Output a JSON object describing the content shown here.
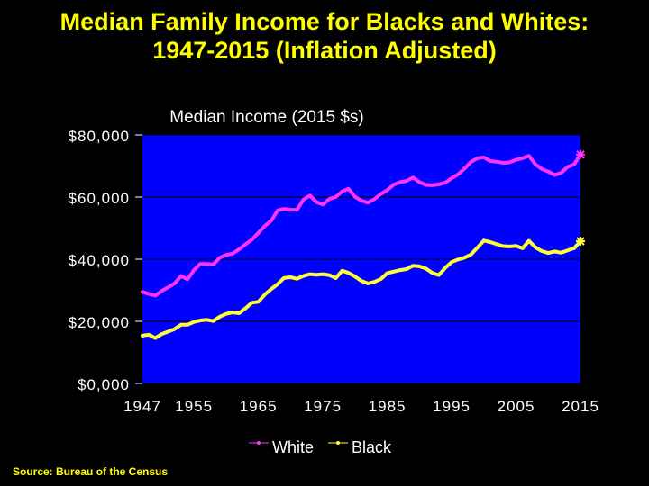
{
  "slide": {
    "title_line1": "Median Family Income for Blacks and Whites:",
    "title_line2": "1947-2015 (Inflation Adjusted)",
    "source": "Source: Bureau of the Census"
  },
  "colors": {
    "background": "#000000",
    "plot_area": "#0000FF",
    "title": "#FFFF00",
    "text": "#FFFFFF",
    "white_series": "#FF33FF",
    "black_series": "#FFFF33"
  },
  "chart_data": {
    "type": "line",
    "title": "Median Income (2015 $s)",
    "xlabel": "",
    "ylabel": "",
    "xlim": [
      1947,
      2015
    ],
    "ylim": [
      0,
      80000
    ],
    "x_ticks": [
      1947,
      1955,
      1965,
      1975,
      1985,
      1995,
      2005,
      2015
    ],
    "x_tick_labels": [
      "1947",
      "1955",
      "1965",
      "1975",
      "1985",
      "1995",
      "2005",
      "2015"
    ],
    "y_ticks": [
      0,
      20000,
      40000,
      60000,
      80000
    ],
    "y_tick_labels": [
      "$0,000",
      "$20,000",
      "$40,000",
      "$60,000",
      "$80,000"
    ],
    "grid": "horizontal",
    "legend_position": "bottom-center",
    "x": [
      1947,
      1948,
      1949,
      1950,
      1951,
      1952,
      1953,
      1954,
      1955,
      1956,
      1957,
      1958,
      1959,
      1960,
      1961,
      1962,
      1963,
      1964,
      1965,
      1966,
      1967,
      1968,
      1969,
      1970,
      1971,
      1972,
      1973,
      1974,
      1975,
      1976,
      1977,
      1978,
      1979,
      1980,
      1981,
      1982,
      1983,
      1984,
      1985,
      1986,
      1987,
      1988,
      1989,
      1990,
      1991,
      1992,
      1993,
      1994,
      1995,
      1996,
      1997,
      1998,
      1999,
      2000,
      2001,
      2002,
      2003,
      2004,
      2005,
      2006,
      2007,
      2008,
      2009,
      2010,
      2011,
      2012,
      2013,
      2014,
      2015
    ],
    "series": [
      {
        "name": "White",
        "color": "#FF33FF",
        "values": [
          29500,
          28800,
          28300,
          29800,
          31000,
          32200,
          34600,
          33500,
          36500,
          38500,
          38500,
          38300,
          40500,
          41400,
          41800,
          43200,
          44800,
          46300,
          48500,
          50700,
          52400,
          55700,
          56200,
          55900,
          55900,
          59200,
          60500,
          58400,
          57600,
          59400,
          60000,
          61800,
          62700,
          60100,
          58800,
          58200,
          59300,
          61000,
          62200,
          64000,
          64800,
          65200,
          66300,
          64800,
          63900,
          63800,
          64100,
          64600,
          66100,
          67300,
          69200,
          71300,
          72500,
          72800,
          71600,
          71400,
          71000,
          71200,
          72000,
          72500,
          73300,
          70500,
          69000,
          68200,
          67100,
          67800,
          69700,
          70500,
          73700
        ]
      },
      {
        "name": "Black",
        "color": "#FFFF33",
        "values": [
          15400,
          15700,
          14600,
          15900,
          16700,
          17500,
          18900,
          18900,
          19800,
          20300,
          20500,
          20100,
          21500,
          22400,
          22900,
          22600,
          24200,
          26000,
          26300,
          28600,
          30400,
          32000,
          34000,
          34200,
          33700,
          34600,
          35200,
          35000,
          35200,
          34900,
          33900,
          36300,
          35600,
          34400,
          33000,
          32200,
          32700,
          33600,
          35500,
          36000,
          36500,
          36800,
          37900,
          37700,
          37000,
          35600,
          34900,
          37200,
          39100,
          39900,
          40500,
          41500,
          43700,
          46000,
          45500,
          44800,
          44200,
          44100,
          44300,
          43500,
          45900,
          43800,
          42600,
          42000,
          42500,
          42100,
          42800,
          43500,
          45800
        ]
      }
    ]
  }
}
